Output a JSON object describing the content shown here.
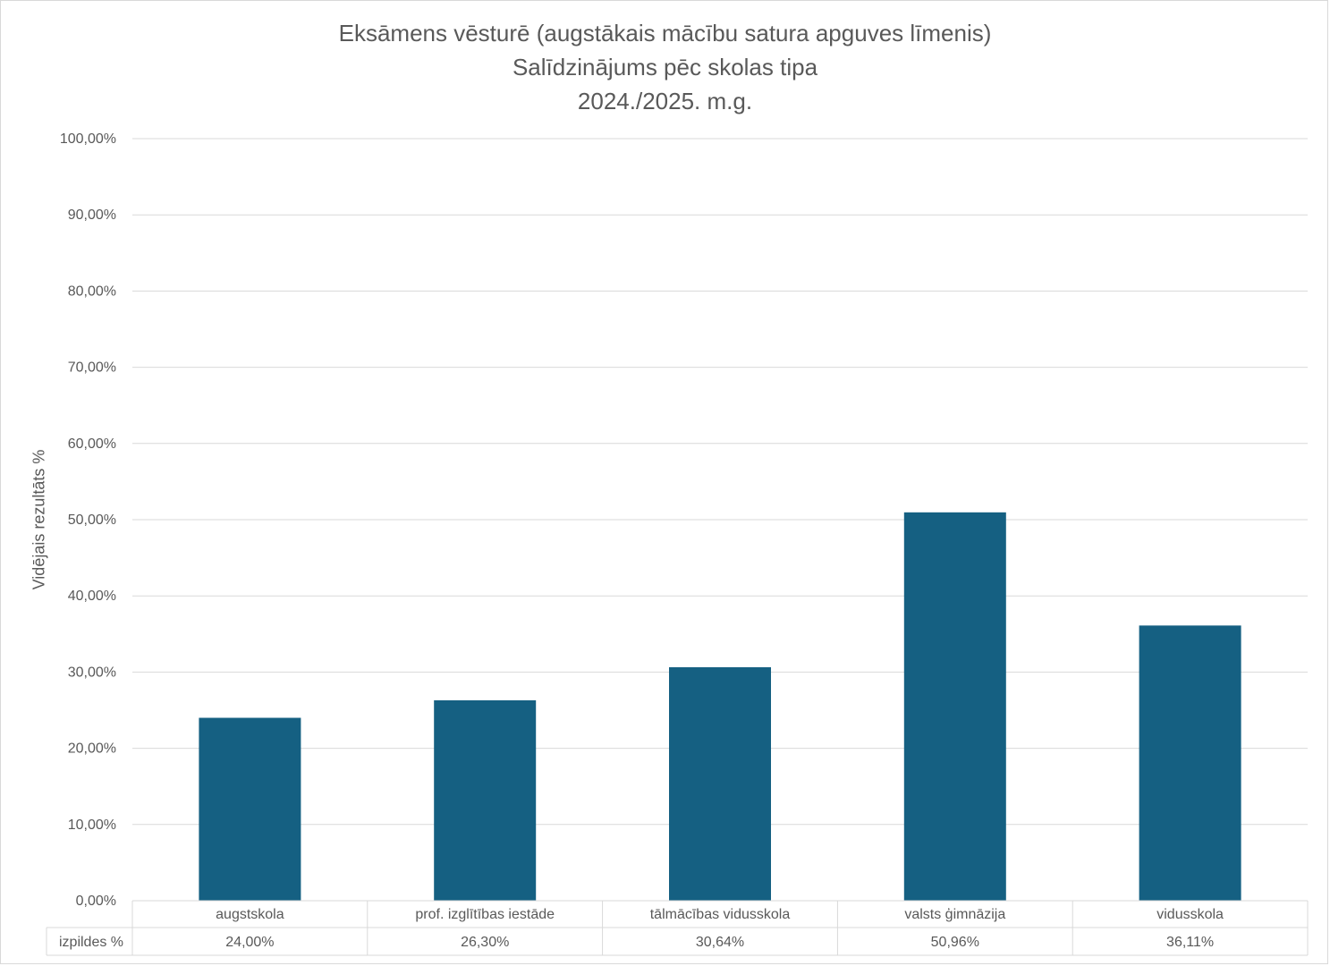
{
  "chart_data": {
    "type": "bar",
    "title": "Eksāmens vēsturē (augstākais mācību satura apguves līmenis)",
    "subtitle": "Salīdzinājums pēc skolas tipa",
    "period": "2024./2025. m.g.",
    "xlabel": "",
    "ylabel": "Vidējais rezultāts %",
    "ylim": [
      0,
      100
    ],
    "ytick_step": 10,
    "ytick_labels": [
      "0,00%",
      "10,00%",
      "20,00%",
      "30,00%",
      "40,00%",
      "50,00%",
      "60,00%",
      "70,00%",
      "80,00%",
      "90,00%",
      "100,00%"
    ],
    "categories": [
      "augstskola",
      "prof. izglītības iestāde",
      "tālmācības vidusskola",
      "valsts ģimnāzija",
      "vidusskola"
    ],
    "series": [
      {
        "name": "izpildes %",
        "values": [
          24.0,
          26.3,
          30.64,
          50.96,
          36.11
        ],
        "value_labels": [
          "24,00%",
          "26,30%",
          "30,64%",
          "50,96%",
          "36,11%"
        ]
      }
    ],
    "grid": true,
    "data_table": true,
    "bar_color": "#156082",
    "grid_color": "#d9d9d9"
  }
}
